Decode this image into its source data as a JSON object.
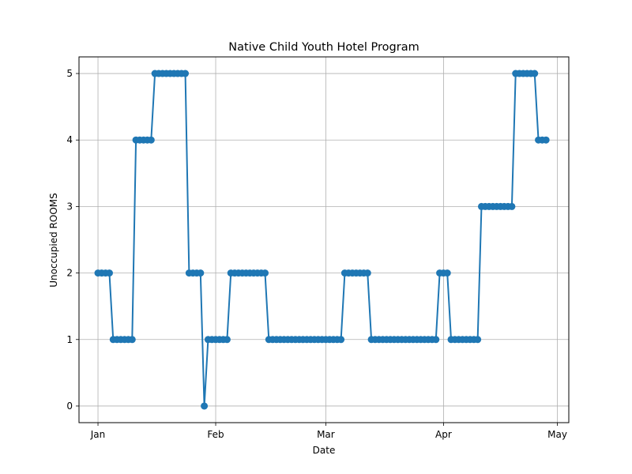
{
  "chart_data": {
    "type": "line",
    "title": "Native Child Youth Hotel Program",
    "xlabel": "Date",
    "ylabel": "Unoccupied ROOMS",
    "x_ticks": [
      {
        "label": "Jan",
        "date": "2024-01-01"
      },
      {
        "label": "Feb",
        "date": "2024-02-01"
      },
      {
        "label": "Mar",
        "date": "2024-03-01"
      },
      {
        "label": "Apr",
        "date": "2024-04-01"
      },
      {
        "label": "May",
        "date": "2024-05-01"
      }
    ],
    "y_ticks": [
      0,
      1,
      2,
      3,
      4,
      5
    ],
    "xlim": [
      "2023-12-27",
      "2024-05-04"
    ],
    "ylim": [
      -0.25,
      5.25
    ],
    "grid": true,
    "series_color": "#1f77b4",
    "marker": "circle",
    "series": [
      {
        "points": [
          {
            "x": "2024-01-01",
            "y": 2
          },
          {
            "x": "2024-01-02",
            "y": 2
          },
          {
            "x": "2024-01-03",
            "y": 2
          },
          {
            "x": "2024-01-04",
            "y": 2
          },
          {
            "x": "2024-01-05",
            "y": 1
          },
          {
            "x": "2024-01-06",
            "y": 1
          },
          {
            "x": "2024-01-07",
            "y": 1
          },
          {
            "x": "2024-01-08",
            "y": 1
          },
          {
            "x": "2024-01-09",
            "y": 1
          },
          {
            "x": "2024-01-10",
            "y": 1
          },
          {
            "x": "2024-01-11",
            "y": 4
          },
          {
            "x": "2024-01-12",
            "y": 4
          },
          {
            "x": "2024-01-13",
            "y": 4
          },
          {
            "x": "2024-01-14",
            "y": 4
          },
          {
            "x": "2024-01-15",
            "y": 4
          },
          {
            "x": "2024-01-16",
            "y": 5
          },
          {
            "x": "2024-01-17",
            "y": 5
          },
          {
            "x": "2024-01-18",
            "y": 5
          },
          {
            "x": "2024-01-19",
            "y": 5
          },
          {
            "x": "2024-01-20",
            "y": 5
          },
          {
            "x": "2024-01-21",
            "y": 5
          },
          {
            "x": "2024-01-22",
            "y": 5
          },
          {
            "x": "2024-01-23",
            "y": 5
          },
          {
            "x": "2024-01-24",
            "y": 5
          },
          {
            "x": "2024-01-25",
            "y": 2
          },
          {
            "x": "2024-01-26",
            "y": 2
          },
          {
            "x": "2024-01-27",
            "y": 2
          },
          {
            "x": "2024-01-28",
            "y": 2
          },
          {
            "x": "2024-01-29",
            "y": 0
          },
          {
            "x": "2024-01-30",
            "y": 1
          },
          {
            "x": "2024-01-31",
            "y": 1
          },
          {
            "x": "2024-02-01",
            "y": 1
          },
          {
            "x": "2024-02-02",
            "y": 1
          },
          {
            "x": "2024-02-03",
            "y": 1
          },
          {
            "x": "2024-02-04",
            "y": 1
          },
          {
            "x": "2024-02-05",
            "y": 2
          },
          {
            "x": "2024-02-06",
            "y": 2
          },
          {
            "x": "2024-02-07",
            "y": 2
          },
          {
            "x": "2024-02-08",
            "y": 2
          },
          {
            "x": "2024-02-09",
            "y": 2
          },
          {
            "x": "2024-02-10",
            "y": 2
          },
          {
            "x": "2024-02-11",
            "y": 2
          },
          {
            "x": "2024-02-12",
            "y": 2
          },
          {
            "x": "2024-02-13",
            "y": 2
          },
          {
            "x": "2024-02-14",
            "y": 2
          },
          {
            "x": "2024-02-15",
            "y": 1
          },
          {
            "x": "2024-02-16",
            "y": 1
          },
          {
            "x": "2024-02-17",
            "y": 1
          },
          {
            "x": "2024-02-18",
            "y": 1
          },
          {
            "x": "2024-02-19",
            "y": 1
          },
          {
            "x": "2024-02-20",
            "y": 1
          },
          {
            "x": "2024-02-21",
            "y": 1
          },
          {
            "x": "2024-02-22",
            "y": 1
          },
          {
            "x": "2024-02-23",
            "y": 1
          },
          {
            "x": "2024-02-24",
            "y": 1
          },
          {
            "x": "2024-02-25",
            "y": 1
          },
          {
            "x": "2024-02-26",
            "y": 1
          },
          {
            "x": "2024-02-27",
            "y": 1
          },
          {
            "x": "2024-02-28",
            "y": 1
          },
          {
            "x": "2024-02-29",
            "y": 1
          },
          {
            "x": "2024-03-01",
            "y": 1
          },
          {
            "x": "2024-03-02",
            "y": 1
          },
          {
            "x": "2024-03-03",
            "y": 1
          },
          {
            "x": "2024-03-04",
            "y": 1
          },
          {
            "x": "2024-03-05",
            "y": 1
          },
          {
            "x": "2024-03-06",
            "y": 2
          },
          {
            "x": "2024-03-07",
            "y": 2
          },
          {
            "x": "2024-03-08",
            "y": 2
          },
          {
            "x": "2024-03-09",
            "y": 2
          },
          {
            "x": "2024-03-10",
            "y": 2
          },
          {
            "x": "2024-03-11",
            "y": 2
          },
          {
            "x": "2024-03-12",
            "y": 2
          },
          {
            "x": "2024-03-13",
            "y": 1
          },
          {
            "x": "2024-03-14",
            "y": 1
          },
          {
            "x": "2024-03-15",
            "y": 1
          },
          {
            "x": "2024-03-16",
            "y": 1
          },
          {
            "x": "2024-03-17",
            "y": 1
          },
          {
            "x": "2024-03-18",
            "y": 1
          },
          {
            "x": "2024-03-19",
            "y": 1
          },
          {
            "x": "2024-03-20",
            "y": 1
          },
          {
            "x": "2024-03-21",
            "y": 1
          },
          {
            "x": "2024-03-22",
            "y": 1
          },
          {
            "x": "2024-03-23",
            "y": 1
          },
          {
            "x": "2024-03-24",
            "y": 1
          },
          {
            "x": "2024-03-25",
            "y": 1
          },
          {
            "x": "2024-03-26",
            "y": 1
          },
          {
            "x": "2024-03-27",
            "y": 1
          },
          {
            "x": "2024-03-28",
            "y": 1
          },
          {
            "x": "2024-03-29",
            "y": 1
          },
          {
            "x": "2024-03-30",
            "y": 1
          },
          {
            "x": "2024-03-31",
            "y": 2
          },
          {
            "x": "2024-04-01",
            "y": 2
          },
          {
            "x": "2024-04-02",
            "y": 2
          },
          {
            "x": "2024-04-03",
            "y": 1
          },
          {
            "x": "2024-04-04",
            "y": 1
          },
          {
            "x": "2024-04-05",
            "y": 1
          },
          {
            "x": "2024-04-06",
            "y": 1
          },
          {
            "x": "2024-04-07",
            "y": 1
          },
          {
            "x": "2024-04-08",
            "y": 1
          },
          {
            "x": "2024-04-09",
            "y": 1
          },
          {
            "x": "2024-04-10",
            "y": 1
          },
          {
            "x": "2024-04-11",
            "y": 3
          },
          {
            "x": "2024-04-12",
            "y": 3
          },
          {
            "x": "2024-04-13",
            "y": 3
          },
          {
            "x": "2024-04-14",
            "y": 3
          },
          {
            "x": "2024-04-15",
            "y": 3
          },
          {
            "x": "2024-04-16",
            "y": 3
          },
          {
            "x": "2024-04-17",
            "y": 3
          },
          {
            "x": "2024-04-18",
            "y": 3
          },
          {
            "x": "2024-04-19",
            "y": 3
          },
          {
            "x": "2024-04-20",
            "y": 5
          },
          {
            "x": "2024-04-21",
            "y": 5
          },
          {
            "x": "2024-04-22",
            "y": 5
          },
          {
            "x": "2024-04-23",
            "y": 5
          },
          {
            "x": "2024-04-24",
            "y": 5
          },
          {
            "x": "2024-04-25",
            "y": 5
          },
          {
            "x": "2024-04-26",
            "y": 4
          },
          {
            "x": "2024-04-27",
            "y": 4
          },
          {
            "x": "2024-04-28",
            "y": 4
          }
        ]
      }
    ]
  }
}
